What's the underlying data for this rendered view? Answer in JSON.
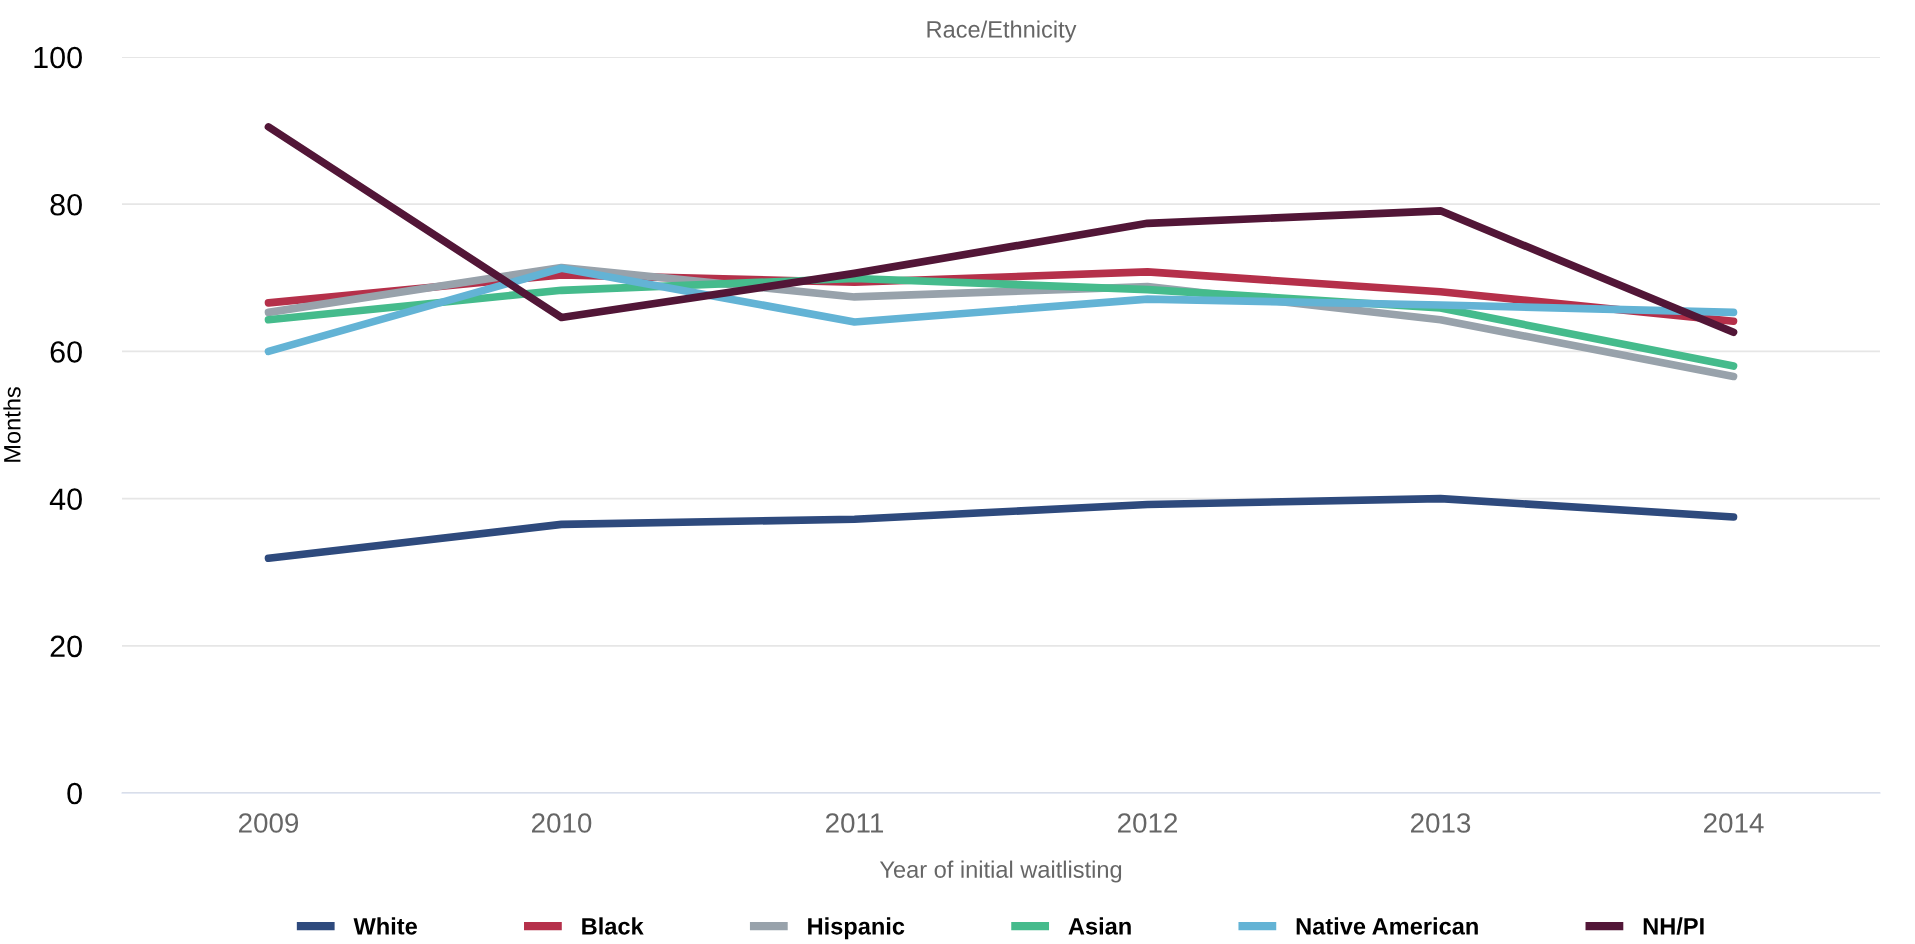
{
  "chart_data": {
    "type": "line",
    "title": "Race/Ethnicity",
    "xlabel": "Year of initial waitlisting",
    "ylabel": "Months",
    "categories": [
      "2009",
      "2010",
      "2011",
      "2012",
      "2013",
      "2014"
    ],
    "series": [
      {
        "name": "White",
        "color": "#2e4a7d",
        "values": [
          31.9,
          36.5,
          37.2,
          39.2,
          40.0,
          37.5
        ]
      },
      {
        "name": "Black",
        "color": "#b5304a",
        "values": [
          66.6,
          70.4,
          69.4,
          70.8,
          68.1,
          64.1
        ]
      },
      {
        "name": "Hispanic",
        "color": "#98a2ab",
        "values": [
          65.3,
          71.4,
          67.4,
          68.8,
          64.3,
          56.6
        ]
      },
      {
        "name": "Asian",
        "color": "#45bb8c",
        "values": [
          64.3,
          68.3,
          69.9,
          68.4,
          65.9,
          58.0
        ]
      },
      {
        "name": "Native American",
        "color": "#63b3d5",
        "values": [
          60.0,
          71.3,
          64.0,
          67.1,
          66.3,
          65.3
        ]
      },
      {
        "name": "NH/PI",
        "color": "#521637",
        "values": [
          90.5,
          64.6,
          70.6,
          77.4,
          79.1,
          62.6
        ]
      }
    ],
    "ylim": [
      0,
      100
    ],
    "yticks": [
      0,
      20,
      40,
      60,
      80,
      100
    ],
    "grid": "y",
    "legend": "bottom",
    "marker": "none",
    "line_style": "solid"
  }
}
